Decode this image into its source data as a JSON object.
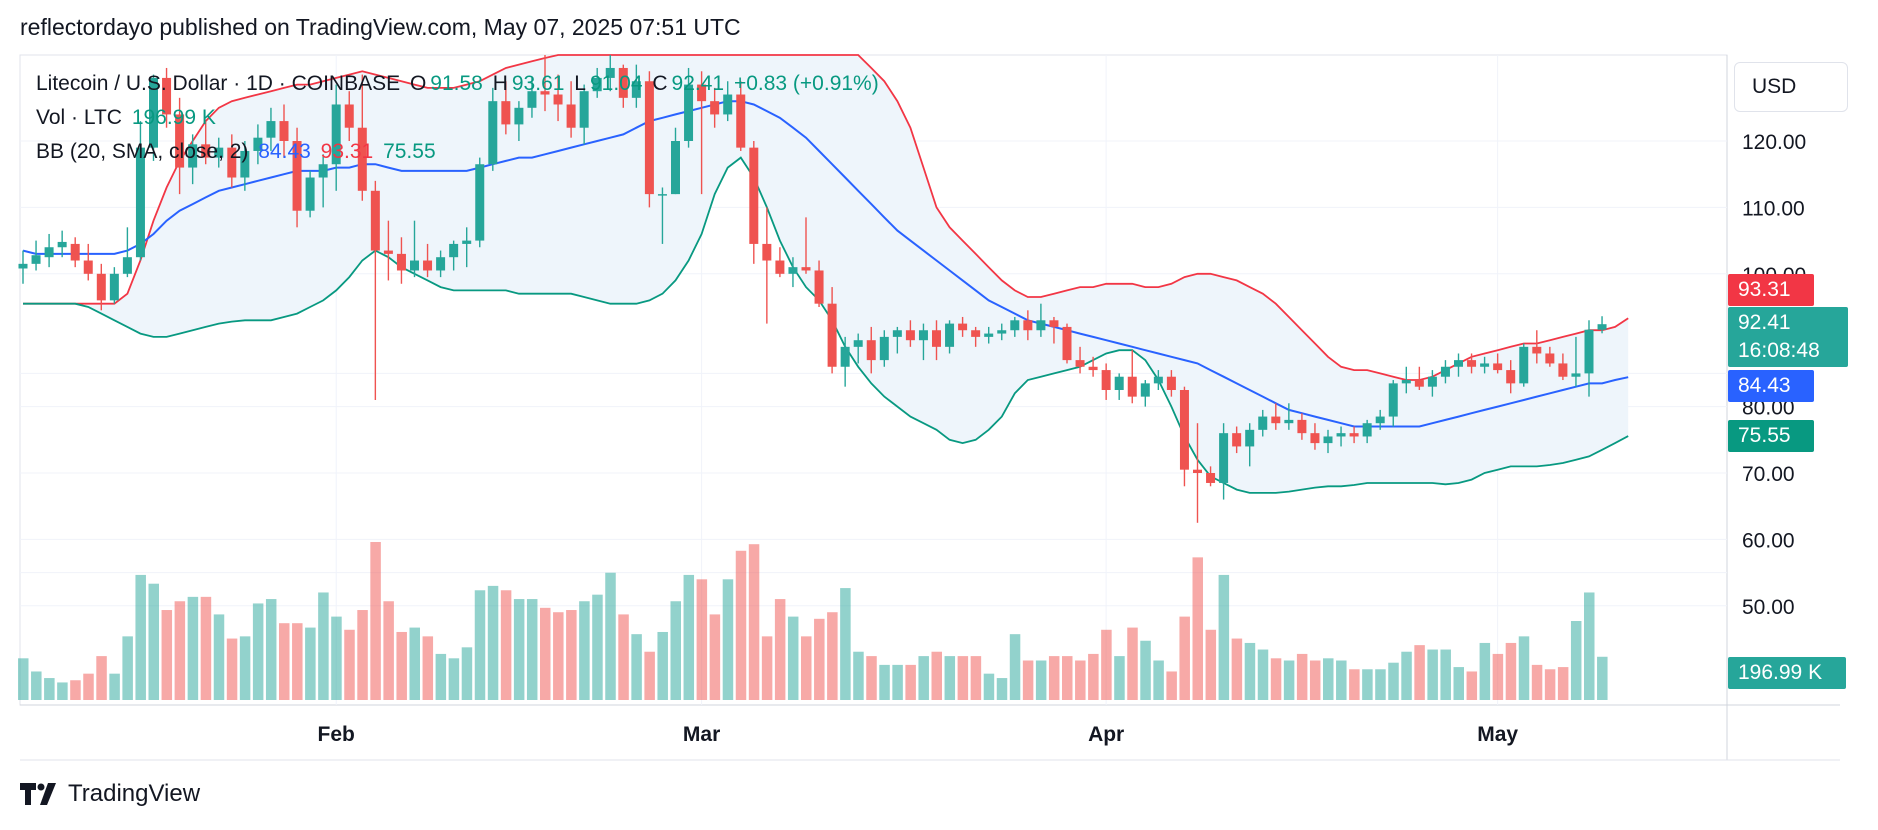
{
  "header": {
    "publish_text": "reflectordayo published on TradingView.com, May 07, 2025 07:51 UTC"
  },
  "legend": {
    "symbol": "Litecoin / U.S. Dollar · 1D · COINBASE",
    "o_label": "O",
    "o_value": "91.58",
    "h_label": "H",
    "h_value": "93.61",
    "l_label": "L",
    "l_value": "91.04",
    "c_label": "C",
    "c_value": "92.41",
    "change": "+0.83 (+0.91%)",
    "vol_label": "Vol · LTC",
    "vol_value": "196.99 K",
    "bb_label": "BB (20, SMA, close, 2)",
    "bb_basis": "84.43",
    "bb_upper": "93.31",
    "bb_lower": "75.55"
  },
  "currency": "USD",
  "price_tags": {
    "upper": "93.31",
    "last": "92.41",
    "countdown": "16:08:48",
    "basis": "84.43",
    "lower": "75.55",
    "volume": "196.99 K"
  },
  "colors": {
    "up": "#26a69a",
    "down": "#ef5350",
    "basis": "#2962ff",
    "upper": "#f23645",
    "lower": "#089981",
    "band_fill": "#eef5fb"
  },
  "brand": "TradingView",
  "chart_data": {
    "type": "candlestick",
    "y_ticks": [
      "120.00",
      "110.00",
      "100.00",
      "80.00",
      "70.00",
      "60.00",
      "50.00"
    ],
    "ylim": [
      45,
      130
    ],
    "x_ticks": [
      {
        "label": "Feb",
        "index": 24
      },
      {
        "label": "Mar",
        "index": 52
      },
      {
        "label": "Apr",
        "index": 83
      },
      {
        "label": "May",
        "index": 113
      }
    ],
    "candles": [
      {
        "o": 100.8,
        "h": 103.5,
        "l": 98.5,
        "c": 101.5,
        "v": 1.9
      },
      {
        "o": 101.5,
        "h": 105.0,
        "l": 100.5,
        "c": 102.8,
        "v": 1.3
      },
      {
        "o": 102.5,
        "h": 106.0,
        "l": 101.0,
        "c": 104.0,
        "v": 1.0
      },
      {
        "o": 104.0,
        "h": 106.5,
        "l": 102.5,
        "c": 104.8,
        "v": 0.8
      },
      {
        "o": 104.5,
        "h": 105.5,
        "l": 101.0,
        "c": 102.0,
        "v": 0.9
      },
      {
        "o": 102.0,
        "h": 104.5,
        "l": 99.0,
        "c": 100.0,
        "v": 1.2
      },
      {
        "o": 100.0,
        "h": 101.5,
        "l": 94.5,
        "c": 96.0,
        "v": 2.0
      },
      {
        "o": 96.0,
        "h": 101.0,
        "l": 95.5,
        "c": 100.0,
        "v": 1.2
      },
      {
        "o": 100.0,
        "h": 107.0,
        "l": 99.5,
        "c": 102.5,
        "v": 2.9
      },
      {
        "o": 102.5,
        "h": 123.0,
        "l": 102.0,
        "c": 119.0,
        "v": 5.7
      },
      {
        "o": 119.0,
        "h": 130.0,
        "l": 117.0,
        "c": 129.5,
        "v": 5.3
      },
      {
        "o": 129.5,
        "h": 131.0,
        "l": 122.0,
        "c": 124.0,
        "v": 4.1
      },
      {
        "o": 124.0,
        "h": 126.5,
        "l": 112.0,
        "c": 116.0,
        "v": 4.5
      },
      {
        "o": 116.0,
        "h": 121.0,
        "l": 113.5,
        "c": 119.5,
        "v": 4.7
      },
      {
        "o": 119.5,
        "h": 123.0,
        "l": 116.5,
        "c": 117.5,
        "v": 4.7
      },
      {
        "o": 117.5,
        "h": 120.5,
        "l": 116.0,
        "c": 119.0,
        "v": 3.9
      },
      {
        "o": 119.0,
        "h": 121.0,
        "l": 113.0,
        "c": 114.5,
        "v": 2.8
      },
      {
        "o": 114.5,
        "h": 120.0,
        "l": 112.5,
        "c": 118.5,
        "v": 2.9
      },
      {
        "o": 118.5,
        "h": 122.5,
        "l": 116.5,
        "c": 120.5,
        "v": 4.4
      },
      {
        "o": 120.5,
        "h": 125.0,
        "l": 118.5,
        "c": 123.0,
        "v": 4.6
      },
      {
        "o": 123.0,
        "h": 125.5,
        "l": 117.5,
        "c": 120.0,
        "v": 3.5
      },
      {
        "o": 120.0,
        "h": 122.0,
        "l": 107.0,
        "c": 109.5,
        "v": 3.5
      },
      {
        "o": 109.5,
        "h": 115.5,
        "l": 108.5,
        "c": 114.5,
        "v": 3.3
      },
      {
        "o": 114.5,
        "h": 118.0,
        "l": 110.0,
        "c": 116.5,
        "v": 4.9
      },
      {
        "o": 116.5,
        "h": 128.5,
        "l": 112.5,
        "c": 125.5,
        "v": 3.8
      },
      {
        "o": 125.5,
        "h": 127.5,
        "l": 120.0,
        "c": 122.0,
        "v": 3.2
      },
      {
        "o": 122.0,
        "h": 130.0,
        "l": 111.0,
        "c": 112.5,
        "v": 4.1
      },
      {
        "o": 112.5,
        "h": 114.0,
        "l": 81.0,
        "c": 103.5,
        "v": 7.2
      },
      {
        "o": 103.5,
        "h": 108.0,
        "l": 99.0,
        "c": 103.0,
        "v": 4.5
      },
      {
        "o": 103.0,
        "h": 105.5,
        "l": 98.5,
        "c": 100.5,
        "v": 3.1
      },
      {
        "o": 100.5,
        "h": 108.0,
        "l": 99.5,
        "c": 102.0,
        "v": 3.3
      },
      {
        "o": 102.0,
        "h": 104.5,
        "l": 99.5,
        "c": 100.5,
        "v": 2.9
      },
      {
        "o": 100.5,
        "h": 103.5,
        "l": 99.5,
        "c": 102.5,
        "v": 2.1
      },
      {
        "o": 102.5,
        "h": 105.0,
        "l": 100.5,
        "c": 104.5,
        "v": 1.9
      },
      {
        "o": 104.5,
        "h": 107.0,
        "l": 101.0,
        "c": 105.0,
        "v": 2.4
      },
      {
        "o": 105.0,
        "h": 117.5,
        "l": 104.0,
        "c": 116.5,
        "v": 5.0
      },
      {
        "o": 116.5,
        "h": 128.0,
        "l": 115.5,
        "c": 126.0,
        "v": 5.2
      },
      {
        "o": 126.0,
        "h": 129.0,
        "l": 121.0,
        "c": 122.5,
        "v": 5.0
      },
      {
        "o": 122.5,
        "h": 126.0,
        "l": 120.0,
        "c": 125.0,
        "v": 4.6
      },
      {
        "o": 125.0,
        "h": 129.5,
        "l": 123.5,
        "c": 127.5,
        "v": 4.6
      },
      {
        "o": 127.5,
        "h": 133.0,
        "l": 124.5,
        "c": 127.0,
        "v": 4.2
      },
      {
        "o": 127.0,
        "h": 130.0,
        "l": 123.0,
        "c": 125.5,
        "v": 4.0
      },
      {
        "o": 125.5,
        "h": 129.0,
        "l": 120.5,
        "c": 122.0,
        "v": 4.1
      },
      {
        "o": 122.0,
        "h": 128.5,
        "l": 119.5,
        "c": 127.5,
        "v": 4.5
      },
      {
        "o": 127.5,
        "h": 131.0,
        "l": 126.5,
        "c": 129.5,
        "v": 4.8
      },
      {
        "o": 129.5,
        "h": 133.0,
        "l": 127.5,
        "c": 131.0,
        "v": 5.8
      },
      {
        "o": 131.0,
        "h": 131.5,
        "l": 125.0,
        "c": 126.5,
        "v": 3.9
      },
      {
        "o": 126.5,
        "h": 131.5,
        "l": 125.0,
        "c": 129.0,
        "v": 3.0
      },
      {
        "o": 129.0,
        "h": 130.5,
        "l": 110.0,
        "c": 112.0,
        "v": 2.2
      },
      {
        "o": 112.0,
        "h": 113.0,
        "l": 104.5,
        "c": 112.0,
        "v": 3.1
      },
      {
        "o": 112.0,
        "h": 122.0,
        "l": 112.0,
        "c": 120.0,
        "v": 4.5
      },
      {
        "o": 120.0,
        "h": 131.0,
        "l": 119.0,
        "c": 128.5,
        "v": 5.7
      },
      {
        "o": 128.5,
        "h": 130.5,
        "l": 112.0,
        "c": 126.0,
        "v": 5.5
      },
      {
        "o": 126.0,
        "h": 128.0,
        "l": 122.0,
        "c": 124.0,
        "v": 3.9
      },
      {
        "o": 124.0,
        "h": 129.0,
        "l": 123.0,
        "c": 127.0,
        "v": 5.5
      },
      {
        "o": 127.0,
        "h": 129.0,
        "l": 118.5,
        "c": 119.0,
        "v": 6.8
      },
      {
        "o": 119.0,
        "h": 120.0,
        "l": 101.5,
        "c": 104.5,
        "v": 7.1
      },
      {
        "o": 104.5,
        "h": 110.0,
        "l": 92.5,
        "c": 102.0,
        "v": 2.9
      },
      {
        "o": 102.0,
        "h": 104.0,
        "l": 99.5,
        "c": 100.0,
        "v": 4.6
      },
      {
        "o": 100.0,
        "h": 102.5,
        "l": 98.0,
        "c": 101.0,
        "v": 3.8
      },
      {
        "o": 101.0,
        "h": 108.5,
        "l": 100.0,
        "c": 100.5,
        "v": 2.9
      },
      {
        "o": 100.5,
        "h": 102.0,
        "l": 95.0,
        "c": 95.5,
        "v": 3.7
      },
      {
        "o": 95.5,
        "h": 98.0,
        "l": 85.0,
        "c": 86.0,
        "v": 4.0
      },
      {
        "o": 86.0,
        "h": 90.5,
        "l": 83.0,
        "c": 89.0,
        "v": 5.1
      },
      {
        "o": 89.0,
        "h": 91.0,
        "l": 86.5,
        "c": 90.0,
        "v": 2.2
      },
      {
        "o": 90.0,
        "h": 92.0,
        "l": 85.0,
        "c": 87.0,
        "v": 2.0
      },
      {
        "o": 87.0,
        "h": 91.5,
        "l": 86.0,
        "c": 90.5,
        "v": 1.6
      },
      {
        "o": 90.5,
        "h": 92.0,
        "l": 88.0,
        "c": 91.5,
        "v": 1.6
      },
      {
        "o": 91.5,
        "h": 93.0,
        "l": 89.0,
        "c": 90.0,
        "v": 1.6
      },
      {
        "o": 90.0,
        "h": 92.5,
        "l": 87.0,
        "c": 91.5,
        "v": 2.0
      },
      {
        "o": 91.5,
        "h": 93.0,
        "l": 87.0,
        "c": 89.0,
        "v": 2.2
      },
      {
        "o": 89.0,
        "h": 93.0,
        "l": 88.0,
        "c": 92.5,
        "v": 2.0
      },
      {
        "o": 92.5,
        "h": 93.5,
        "l": 90.5,
        "c": 91.5,
        "v": 2.0
      },
      {
        "o": 91.5,
        "h": 92.0,
        "l": 89.0,
        "c": 90.5,
        "v": 2.0
      },
      {
        "o": 90.5,
        "h": 92.0,
        "l": 89.5,
        "c": 91.0,
        "v": 1.2
      },
      {
        "o": 91.0,
        "h": 92.5,
        "l": 90.0,
        "c": 91.5,
        "v": 1.0
      },
      {
        "o": 91.5,
        "h": 93.5,
        "l": 90.5,
        "c": 93.0,
        "v": 3.0
      },
      {
        "o": 93.0,
        "h": 94.5,
        "l": 90.0,
        "c": 91.5,
        "v": 1.8
      },
      {
        "o": 91.5,
        "h": 95.5,
        "l": 90.5,
        "c": 93.0,
        "v": 1.8
      },
      {
        "o": 93.0,
        "h": 93.5,
        "l": 89.5,
        "c": 92.0,
        "v": 2.0
      },
      {
        "o": 92.0,
        "h": 92.5,
        "l": 86.5,
        "c": 87.0,
        "v": 2.0
      },
      {
        "o": 87.0,
        "h": 89.0,
        "l": 85.0,
        "c": 86.0,
        "v": 1.8
      },
      {
        "o": 86.0,
        "h": 87.5,
        "l": 84.5,
        "c": 85.5,
        "v": 2.1
      },
      {
        "o": 85.5,
        "h": 86.5,
        "l": 81.0,
        "c": 82.5,
        "v": 3.2
      },
      {
        "o": 82.5,
        "h": 85.0,
        "l": 81.0,
        "c": 84.5,
        "v": 2.0
      },
      {
        "o": 84.5,
        "h": 88.5,
        "l": 80.5,
        "c": 81.5,
        "v": 3.3
      },
      {
        "o": 81.5,
        "h": 84.0,
        "l": 80.0,
        "c": 83.5,
        "v": 2.7
      },
      {
        "o": 83.5,
        "h": 85.5,
        "l": 82.5,
        "c": 84.5,
        "v": 1.8
      },
      {
        "o": 84.5,
        "h": 85.5,
        "l": 81.5,
        "c": 82.5,
        "v": 1.3
      },
      {
        "o": 82.5,
        "h": 83.0,
        "l": 68.0,
        "c": 70.5,
        "v": 3.8
      },
      {
        "o": 70.5,
        "h": 77.5,
        "l": 62.5,
        "c": 70.0,
        "v": 6.5
      },
      {
        "o": 70.0,
        "h": 71.0,
        "l": 68.0,
        "c": 68.5,
        "v": 3.2
      },
      {
        "o": 68.5,
        "h": 77.5,
        "l": 66.0,
        "c": 76.0,
        "v": 5.7
      },
      {
        "o": 76.0,
        "h": 77.0,
        "l": 73.0,
        "c": 74.0,
        "v": 2.8
      },
      {
        "o": 74.0,
        "h": 77.5,
        "l": 71.0,
        "c": 76.5,
        "v": 2.6
      },
      {
        "o": 76.5,
        "h": 79.5,
        "l": 75.5,
        "c": 78.5,
        "v": 2.3
      },
      {
        "o": 78.5,
        "h": 80.5,
        "l": 76.5,
        "c": 77.5,
        "v": 1.9
      },
      {
        "o": 77.5,
        "h": 80.5,
        "l": 76.5,
        "c": 78.0,
        "v": 1.8
      },
      {
        "o": 78.0,
        "h": 79.0,
        "l": 75.0,
        "c": 76.0,
        "v": 2.1
      },
      {
        "o": 76.0,
        "h": 77.5,
        "l": 73.5,
        "c": 74.5,
        "v": 1.8
      },
      {
        "o": 74.5,
        "h": 76.5,
        "l": 73.0,
        "c": 75.5,
        "v": 1.9
      },
      {
        "o": 75.5,
        "h": 77.0,
        "l": 74.0,
        "c": 76.0,
        "v": 1.8
      },
      {
        "o": 76.0,
        "h": 77.0,
        "l": 74.5,
        "c": 75.5,
        "v": 1.4
      },
      {
        "o": 75.5,
        "h": 78.0,
        "l": 74.5,
        "c": 77.5,
        "v": 1.4
      },
      {
        "o": 77.5,
        "h": 79.5,
        "l": 76.5,
        "c": 78.5,
        "v": 1.4
      },
      {
        "o": 78.5,
        "h": 84.0,
        "l": 77.0,
        "c": 83.5,
        "v": 1.7
      },
      {
        "o": 83.5,
        "h": 86.0,
        "l": 82.0,
        "c": 84.0,
        "v": 2.2
      },
      {
        "o": 84.0,
        "h": 86.0,
        "l": 82.5,
        "c": 83.0,
        "v": 2.5
      },
      {
        "o": 83.0,
        "h": 85.5,
        "l": 81.5,
        "c": 84.5,
        "v": 2.3
      },
      {
        "o": 84.5,
        "h": 87.0,
        "l": 83.5,
        "c": 86.0,
        "v": 2.3
      },
      {
        "o": 86.0,
        "h": 88.0,
        "l": 84.5,
        "c": 87.0,
        "v": 1.5
      },
      {
        "o": 87.0,
        "h": 88.0,
        "l": 85.0,
        "c": 86.0,
        "v": 1.3
      },
      {
        "o": 86.0,
        "h": 87.5,
        "l": 85.0,
        "c": 86.5,
        "v": 2.6
      },
      {
        "o": 86.5,
        "h": 88.0,
        "l": 85.0,
        "c": 85.5,
        "v": 2.1
      },
      {
        "o": 85.5,
        "h": 87.0,
        "l": 82.0,
        "c": 83.5,
        "v": 2.6
      },
      {
        "o": 83.5,
        "h": 89.5,
        "l": 83.0,
        "c": 89.0,
        "v": 2.9
      },
      {
        "o": 89.0,
        "h": 91.5,
        "l": 86.5,
        "c": 88.0,
        "v": 1.6
      },
      {
        "o": 88.0,
        "h": 89.0,
        "l": 86.0,
        "c": 86.5,
        "v": 1.4
      },
      {
        "o": 86.5,
        "h": 88.0,
        "l": 84.0,
        "c": 84.5,
        "v": 1.5
      },
      {
        "o": 84.5,
        "h": 90.5,
        "l": 83.0,
        "c": 85.0,
        "v": 3.6
      },
      {
        "o": 85.0,
        "h": 93.0,
        "l": 81.5,
        "c": 91.58,
        "v": 4.9
      },
      {
        "o": 91.58,
        "h": 93.61,
        "l": 91.04,
        "c": 92.41,
        "v": 1.97
      }
    ],
    "bb_upper": [
      95.5,
      95.5,
      95.5,
      95.5,
      95.5,
      95.5,
      95.5,
      95.5,
      97.0,
      102.0,
      108.0,
      113.0,
      117.0,
      120.0,
      123.0,
      125.0,
      126.0,
      126.5,
      127.0,
      127.5,
      128.0,
      128.5,
      128.5,
      129.0,
      129.5,
      130.0,
      130.5,
      130.0,
      129.5,
      129.0,
      128.5,
      128.0,
      128.0,
      128.0,
      128.5,
      129.0,
      130.0,
      131.0,
      131.5,
      132.0,
      132.5,
      133.0,
      133.0,
      133.0,
      133.0,
      133.5,
      133.5,
      133.5,
      133.5,
      133.5,
      133.5,
      133.5,
      133.5,
      133.5,
      133.5,
      133.5,
      133.5,
      133.5,
      133.5,
      133.5,
      133.5,
      133.5,
      133.5,
      133.5,
      133.0,
      131.0,
      129.0,
      126.0,
      122.0,
      116.0,
      110.0,
      107.0,
      105.0,
      103.0,
      101.0,
      99.0,
      97.5,
      96.5,
      96.5,
      97.0,
      97.5,
      98.0,
      98.0,
      98.5,
      98.5,
      98.5,
      98.0,
      98.0,
      98.5,
      99.5,
      100.0,
      100.0,
      99.5,
      99.0,
      98.0,
      97.0,
      95.5,
      93.5,
      91.5,
      89.5,
      87.5,
      86.0,
      85.5,
      85.5,
      85.0,
      84.5,
      84.0,
      84.0,
      84.5,
      85.5,
      86.5,
      87.5,
      88.0,
      88.5,
      89.0,
      89.5,
      89.5,
      90.0,
      90.5,
      91.0,
      91.5,
      91.5,
      92.0,
      93.31
    ],
    "bb_basis": [
      103.5,
      103.0,
      103.0,
      103.0,
      103.0,
      103.0,
      103.0,
      103.0,
      103.5,
      104.5,
      106.0,
      108.0,
      109.5,
      110.5,
      111.5,
      112.5,
      113.0,
      113.5,
      114.0,
      114.5,
      115.0,
      115.5,
      115.5,
      115.5,
      116.0,
      116.0,
      116.5,
      116.5,
      116.0,
      115.5,
      115.5,
      115.5,
      115.5,
      115.5,
      115.5,
      116.0,
      116.5,
      117.0,
      117.5,
      117.5,
      118.0,
      118.5,
      119.0,
      119.5,
      120.0,
      120.5,
      121.0,
      122.0,
      123.0,
      123.5,
      124.0,
      124.5,
      125.0,
      125.5,
      126.0,
      126.0,
      125.5,
      124.5,
      123.5,
      122.0,
      120.5,
      118.5,
      116.5,
      114.5,
      112.5,
      110.5,
      108.5,
      106.5,
      105.0,
      103.5,
      102.0,
      100.5,
      99.0,
      97.5,
      96.0,
      95.0,
      94.0,
      93.0,
      92.5,
      92.0,
      91.5,
      91.0,
      90.5,
      90.0,
      89.5,
      89.0,
      88.5,
      88.0,
      87.5,
      87.0,
      86.5,
      85.5,
      84.5,
      83.5,
      82.5,
      81.5,
      80.5,
      79.5,
      79.0,
      78.5,
      78.0,
      77.5,
      77.0,
      77.0,
      77.0,
      77.0,
      77.0,
      77.0,
      77.5,
      78.0,
      78.5,
      79.0,
      79.5,
      80.0,
      80.5,
      81.0,
      81.5,
      82.0,
      82.5,
      83.0,
      83.5,
      83.5,
      84.0,
      84.43
    ],
    "bb_lower": [
      95.5,
      95.5,
      95.5,
      95.5,
      95.5,
      95.0,
      94.0,
      93.0,
      92.0,
      91.0,
      90.5,
      90.5,
      91.0,
      91.5,
      92.0,
      92.5,
      92.8,
      93.0,
      93.0,
      93.0,
      93.5,
      94.0,
      95.0,
      96.0,
      97.5,
      99.5,
      102.0,
      103.5,
      102.5,
      101.0,
      100.0,
      99.0,
      98.0,
      97.5,
      97.5,
      97.5,
      97.5,
      97.5,
      97.0,
      97.0,
      97.0,
      97.0,
      97.0,
      96.5,
      96.0,
      95.5,
      95.5,
      95.5,
      96.0,
      97.0,
      99.0,
      102.0,
      106.0,
      112.0,
      116.0,
      117.5,
      114.5,
      110.0,
      105.0,
      101.0,
      98.0,
      96.0,
      93.0,
      89.0,
      86.0,
      83.5,
      81.5,
      80.0,
      78.5,
      77.5,
      76.5,
      75.0,
      74.5,
      75.0,
      76.5,
      78.5,
      82.0,
      84.0,
      84.5,
      85.0,
      85.5,
      86.0,
      87.0,
      88.0,
      88.5,
      88.5,
      87.0,
      84.0,
      80.0,
      75.5,
      72.0,
      69.5,
      68.5,
      67.5,
      67.0,
      67.0,
      67.0,
      67.2,
      67.5,
      67.8,
      68.0,
      68.0,
      68.2,
      68.5,
      68.5,
      68.5,
      68.5,
      68.5,
      68.5,
      68.3,
      68.5,
      69.0,
      70.0,
      70.5,
      71.0,
      71.0,
      71.0,
      71.2,
      71.5,
      72.0,
      72.5,
      73.5,
      74.5,
      75.55
    ]
  }
}
